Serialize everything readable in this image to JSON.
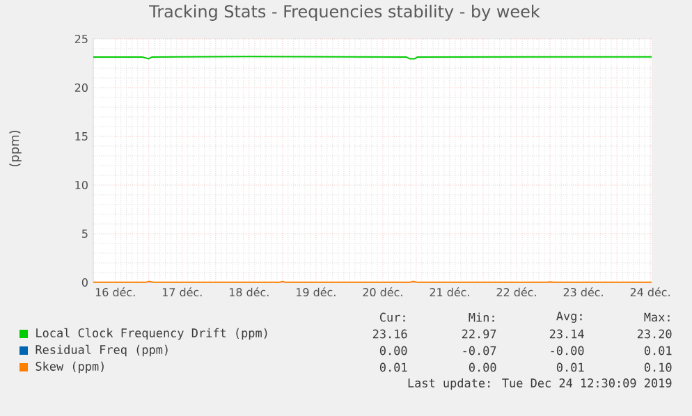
{
  "chart_data": {
    "type": "line",
    "title": "Tracking Stats - Frequencies stability - by week",
    "ylabel": "(ppm)",
    "xlim": [
      16.17,
      24.52
    ],
    "ylim": [
      0,
      25
    ],
    "yticks": [
      0,
      5,
      10,
      15,
      20,
      25
    ],
    "xticks": [
      {
        "value": 16.5,
        "label": "16 déc."
      },
      {
        "value": 17,
        "label": null
      },
      {
        "value": 17.5,
        "label": "17 déc."
      },
      {
        "value": 18,
        "label": null
      },
      {
        "value": 18.5,
        "label": "18 déc."
      },
      {
        "value": 19,
        "label": null
      },
      {
        "value": 19.5,
        "label": "19 déc."
      },
      {
        "value": 20,
        "label": null
      },
      {
        "value": 20.5,
        "label": "20 déc."
      },
      {
        "value": 21,
        "label": null
      },
      {
        "value": 21.5,
        "label": "21 déc."
      },
      {
        "value": 22,
        "label": null
      },
      {
        "value": 22.5,
        "label": "22 déc."
      },
      {
        "value": 23,
        "label": null
      },
      {
        "value": 23.5,
        "label": "23 déc."
      },
      {
        "value": 24,
        "label": null
      },
      {
        "value": 24.5,
        "label": "24 déc."
      }
    ],
    "grid": true,
    "legend": "bottom",
    "marker": "none",
    "line_style": "solid",
    "series": [
      {
        "name": "Local Clock Frequency Drift (ppm)",
        "color": "#00cc00",
        "x": [
          16.17,
          16.9,
          17.0,
          17.05,
          18.5,
          20.85,
          20.9,
          20.98,
          21.02,
          24.52
        ],
        "values": [
          23.15,
          23.15,
          22.97,
          23.15,
          23.2,
          23.15,
          22.97,
          22.97,
          23.15,
          23.16
        ]
      },
      {
        "name": "Residual Freq (ppm)",
        "color": "#0066b3"
      },
      {
        "name": "Skew (ppm)",
        "color": "#ff8000",
        "x": [
          16.17,
          16.95,
          17.0,
          17.08,
          18.95,
          19.0,
          19.05,
          20.9,
          20.95,
          21.02,
          22.95,
          23.0,
          23.05,
          24.52
        ],
        "values": [
          0.01,
          0.01,
          0.1,
          0.01,
          0.01,
          0.1,
          0.01,
          0.01,
          0.1,
          0.01,
          0.01,
          0.05,
          0.01,
          0.01
        ]
      }
    ],
    "annotations": [
      "Cur:",
      "Min:",
      "Avg:",
      "Max:",
      "23.16",
      "22.97",
      "23.14",
      "23.20",
      "0.00",
      "-0.07",
      "-0.00",
      "0.01",
      "0.01",
      "0.00",
      "0.01",
      "0.10",
      "Last update: Tue Dec 24 12:30:09 2019"
    ]
  }
}
